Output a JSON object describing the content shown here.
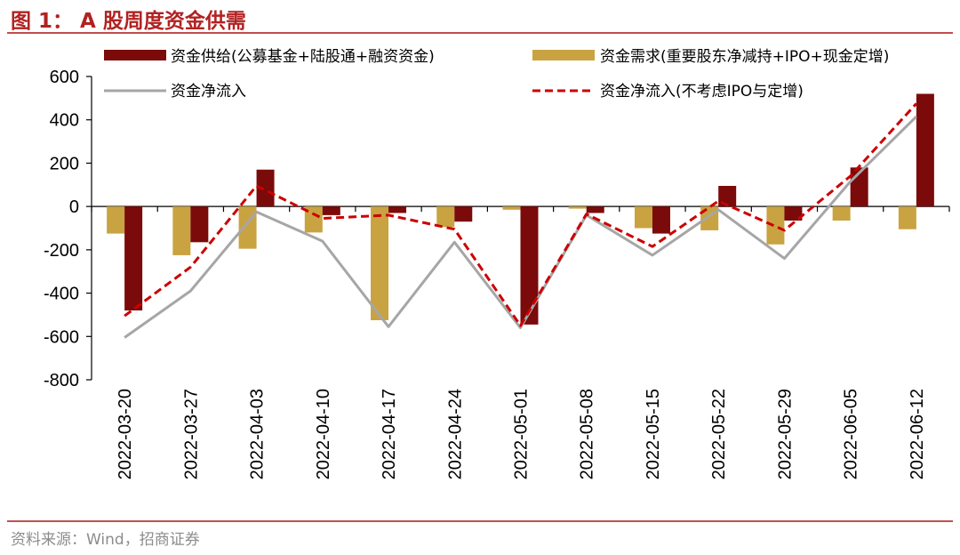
{
  "figure_title": "图 1： A 股周度资金供需",
  "source": "资料来源：Wind，招商证券",
  "colors": {
    "supply": "#7b0a0a",
    "demand": "#c9a341",
    "net": "#a6a6a6",
    "net_ex": "#cc0000",
    "rule": "#c0504d"
  },
  "chart_data": {
    "type": "bar",
    "title": "A 股周度资金供需",
    "categories": [
      "2022-03-20",
      "2022-03-27",
      "2022-04-03",
      "2022-04-10",
      "2022-04-17",
      "2022-04-24",
      "2022-05-01",
      "2022-05-08",
      "2022-05-15",
      "2022-05-22",
      "2022-05-29",
      "2022-06-05",
      "2022-06-12"
    ],
    "ylim": [
      -800,
      600
    ],
    "yticks": [
      -800,
      -600,
      -400,
      -200,
      0,
      200,
      400,
      600
    ],
    "grid": false,
    "legend_position": "top",
    "series": [
      {
        "name": "资金供给(公募基金+陆股通+融资资金)",
        "kind": "bar",
        "values": [
          -480,
          -165,
          170,
          -40,
          -30,
          -70,
          -545,
          -30,
          -125,
          95,
          -65,
          180,
          520
        ]
      },
      {
        "name": "资金需求(重要股东净减持+IPO+现金定增)",
        "kind": "bar",
        "values": [
          -125,
          -225,
          -195,
          -120,
          -525,
          -95,
          -15,
          -10,
          -100,
          -110,
          -175,
          -65,
          -105
        ]
      },
      {
        "name": "资金净流入",
        "kind": "line",
        "values": [
          -605,
          -390,
          -25,
          -160,
          -555,
          -165,
          -560,
          -40,
          -225,
          -15,
          -240,
          115,
          415
        ]
      },
      {
        "name": "资金净流入(不考虑IPO与定增)",
        "kind": "line-dashed",
        "values": [
          -505,
          -280,
          95,
          -55,
          -40,
          -105,
          -550,
          -35,
          -185,
          25,
          -110,
          140,
          475
        ]
      }
    ]
  }
}
